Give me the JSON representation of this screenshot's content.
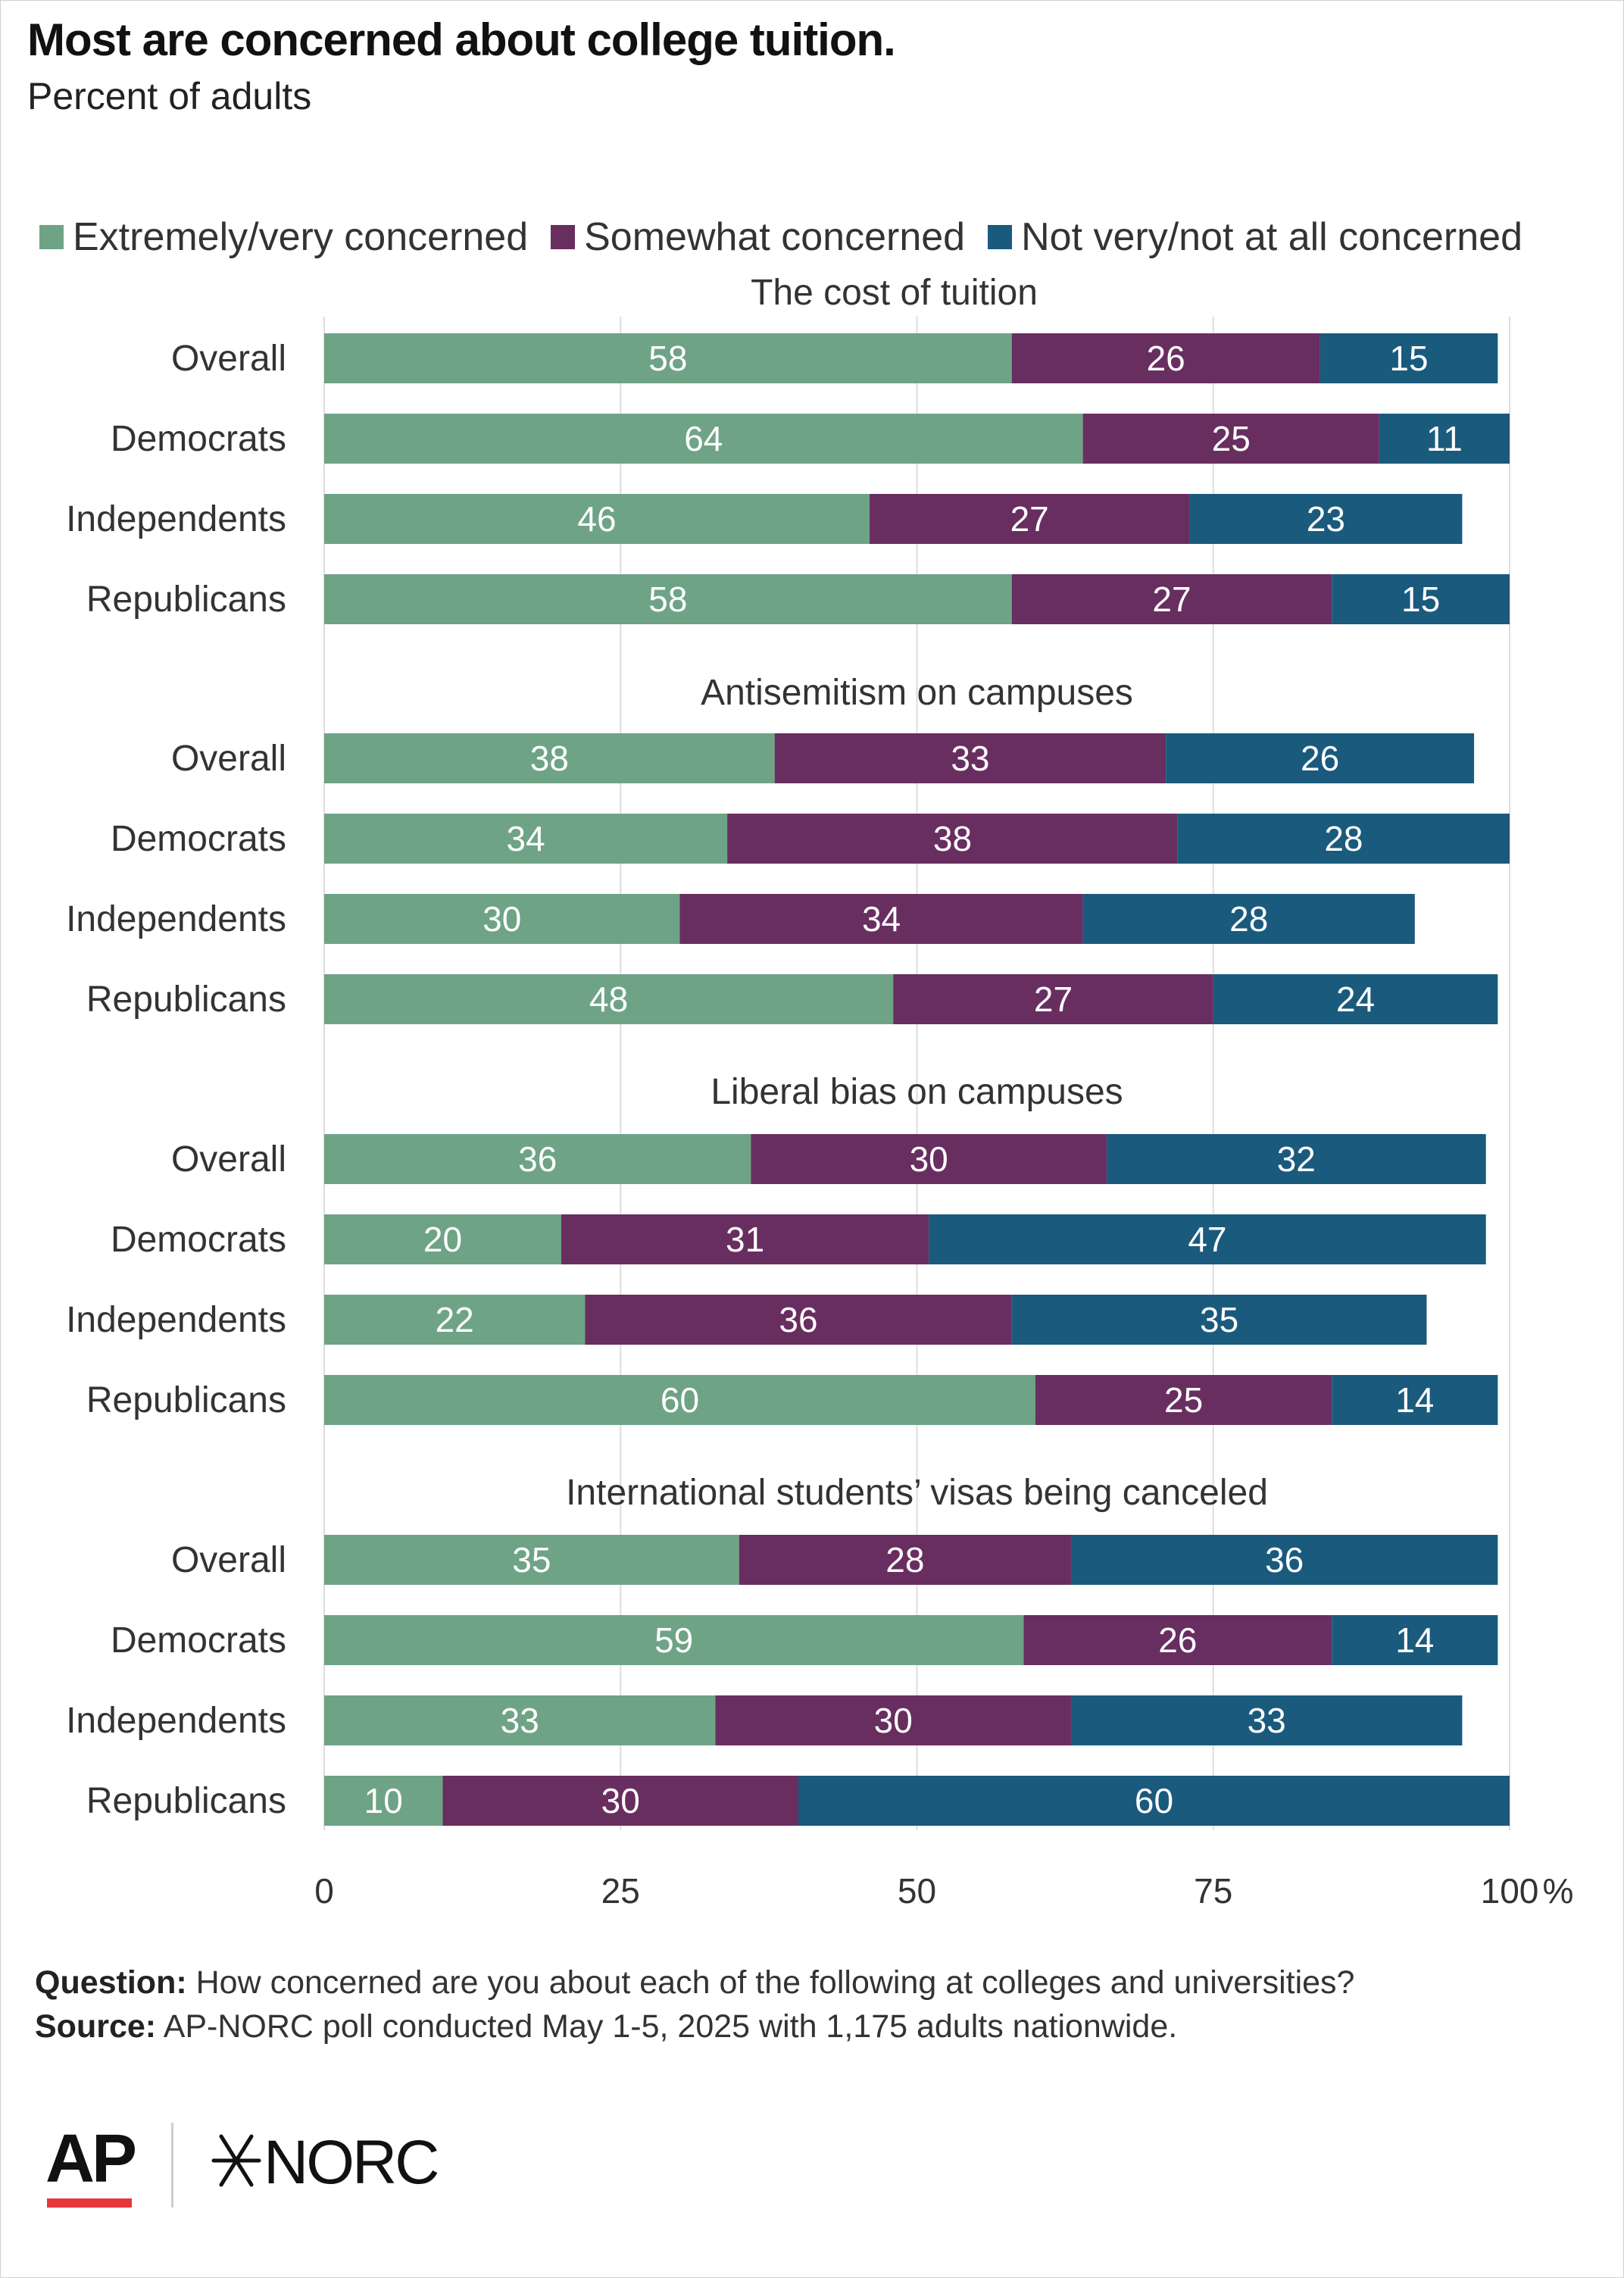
{
  "title": "Most are concerned about college tuition.",
  "subtitle": "Percent of adults",
  "chart_data": {
    "type": "bar",
    "orientation": "horizontal",
    "stacked": true,
    "x_unit": "%",
    "xlim": [
      0,
      100
    ],
    "x_ticks": [
      "0",
      "25",
      "50",
      "75",
      "100"
    ],
    "grid": true,
    "legend_position": "top",
    "series": [
      {
        "name": "Extremely/very concerned",
        "color": "#6fa386"
      },
      {
        "name": "Somewhat concerned",
        "color": "#682e60"
      },
      {
        "name": "Not very/not at all concerned",
        "color": "#1a5a7d"
      }
    ],
    "groups": [
      {
        "title": "The cost of tuition",
        "rows": [
          {
            "label": "Overall",
            "values": [
              58,
              26,
              15
            ]
          },
          {
            "label": "Democrats",
            "values": [
              64,
              25,
              11
            ]
          },
          {
            "label": "Independents",
            "values": [
              46,
              27,
              23
            ]
          },
          {
            "label": "Republicans",
            "values": [
              58,
              27,
              15
            ]
          }
        ]
      },
      {
        "title": "Antisemitism on campuses",
        "rows": [
          {
            "label": "Overall",
            "values": [
              38,
              33,
              26
            ]
          },
          {
            "label": "Democrats",
            "values": [
              34,
              38,
              28
            ]
          },
          {
            "label": "Independents",
            "values": [
              30,
              34,
              28
            ]
          },
          {
            "label": "Republicans",
            "values": [
              48,
              27,
              24
            ]
          }
        ]
      },
      {
        "title": "Liberal bias on campuses",
        "rows": [
          {
            "label": "Overall",
            "values": [
              36,
              30,
              32
            ]
          },
          {
            "label": "Democrats",
            "values": [
              20,
              31,
              47
            ]
          },
          {
            "label": "Independents",
            "values": [
              22,
              36,
              35
            ]
          },
          {
            "label": "Republicans",
            "values": [
              60,
              25,
              14
            ]
          }
        ]
      },
      {
        "title": "International students’ visas being canceled",
        "rows": [
          {
            "label": "Overall",
            "values": [
              35,
              28,
              36
            ]
          },
          {
            "label": "Democrats",
            "values": [
              59,
              26,
              14
            ]
          },
          {
            "label": "Independents",
            "values": [
              33,
              30,
              33
            ]
          },
          {
            "label": "Republicans",
            "values": [
              10,
              30,
              60
            ]
          }
        ]
      }
    ]
  },
  "footer": {
    "question_label": "Question:",
    "question_text": "How concerned are you about each of the following at colleges and universities?",
    "source_label": "Source:",
    "source_text": "AP-NORC poll conducted May 1-5, 2025 with 1,175 adults nationwide."
  },
  "logos": {
    "ap": "AP",
    "norc": "NORC",
    "ap_color": "#111111",
    "ap_underline_color": "#e8373a"
  }
}
